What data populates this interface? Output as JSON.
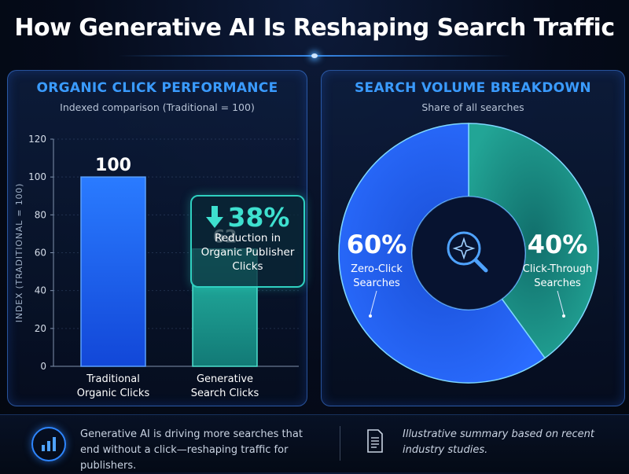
{
  "title": "How Generative AI Is Reshaping Search Traffic",
  "chart_data": [
    {
      "type": "bar",
      "title": "ORGANIC CLICK PERFORMANCE",
      "subtitle": "Indexed comparison (Traditional = 100)",
      "ylabel": "INDEX (TRADITIONAL = 100)",
      "ylim": [
        0,
        120
      ],
      "yticks": [
        0,
        20,
        40,
        60,
        80,
        100,
        120
      ],
      "categories": [
        "Traditional Organic Clicks",
        "Generative Search Clicks"
      ],
      "category_lines": [
        [
          "Traditional",
          "Organic Clicks"
        ],
        [
          "Generative",
          "Search Clicks"
        ]
      ],
      "values": [
        100,
        62
      ],
      "colors": [
        "#1f6bff",
        "#1fa89a"
      ],
      "callout": {
        "value": "38%",
        "lines": [
          "Reduction in",
          "Organic Publisher",
          "Clicks"
        ]
      }
    },
    {
      "type": "pie",
      "title": "SEARCH VOLUME BREAKDOWN",
      "subtitle": "Share of all searches",
      "slices": [
        {
          "label": "Zero-Click Searches",
          "lines": [
            "Zero-Click",
            "Searches"
          ],
          "value": 60,
          "display": "60%",
          "color": "#1f62f0"
        },
        {
          "label": "Click-Through Searches",
          "lines": [
            "Click-Through",
            "Searches"
          ],
          "value": 40,
          "display": "40%",
          "color": "#1d9a90"
        }
      ],
      "center_icon": "search-sparkle-icon"
    }
  ],
  "footer": {
    "left_icon": "bar-chart-icon",
    "left_text": "Generative AI is driving more searches that end without a click—reshaping traffic for publishers.",
    "right_icon": "document-icon",
    "right_text": "Illustrative summary based on recent industry studies."
  }
}
